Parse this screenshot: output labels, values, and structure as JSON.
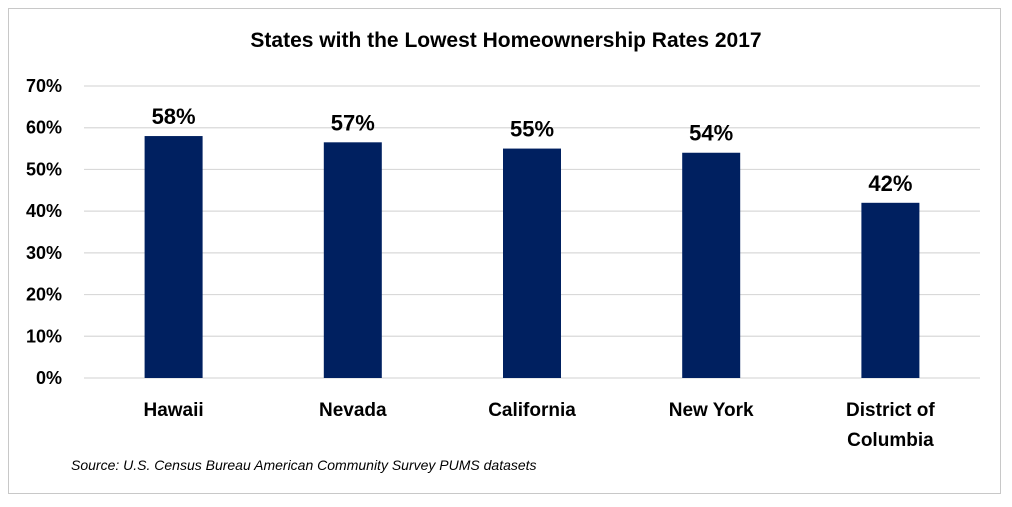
{
  "chart_data": {
    "type": "bar",
    "title": "States with the Lowest Homeownership Rates 2017",
    "categories": [
      [
        "Hawaii"
      ],
      [
        "Nevada"
      ],
      [
        "California"
      ],
      [
        "New York"
      ],
      [
        "District of",
        "Columbia"
      ]
    ],
    "values": [
      58,
      56.5,
      55,
      54,
      42
    ],
    "data_labels": [
      "58%",
      "57%",
      "55%",
      "54%",
      "42%"
    ],
    "yticks": [
      "0%",
      "10%",
      "20%",
      "30%",
      "40%",
      "50%",
      "60%",
      "70%"
    ],
    "ylim": [
      0,
      70
    ],
    "grid": true,
    "bar_color": "#002060",
    "gridline_color": "#d9d9d9"
  },
  "source": "Source: U.S. Census Bureau American Community Survey PUMS datasets"
}
